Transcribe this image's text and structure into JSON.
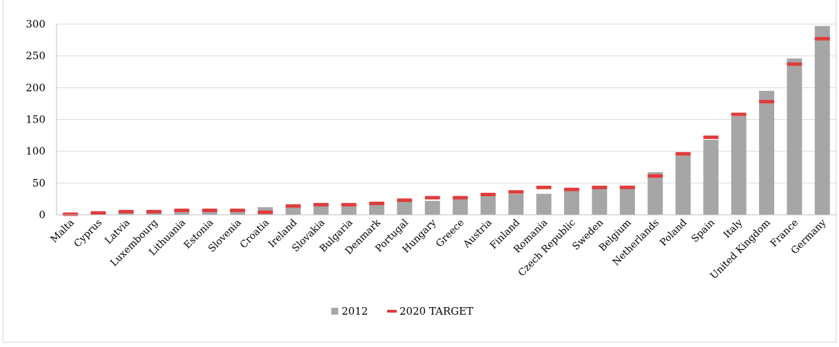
{
  "chart_data": {
    "type": "bar",
    "title": "",
    "xlabel": "",
    "ylabel": "",
    "ylim": [
      0,
      300
    ],
    "yticks": [
      "0",
      "50",
      "100",
      "150",
      "200",
      "250",
      "300"
    ],
    "grid": true,
    "legend_position": "bottom",
    "categories": [
      "Malta",
      "Cyprus",
      "Latvia",
      "Luxembourg",
      "Lithuania",
      "Estonia",
      "Slovenia",
      "Croatia",
      "Ireland",
      "Slovakia",
      "Bulgaria",
      "Denmark",
      "Portugal",
      "Hungary",
      "Greece",
      "Austria",
      "Finland",
      "Romania",
      "Czech Republic",
      "Sweden",
      "Belgium",
      "Netherlands",
      "Poland",
      "Spain",
      "Italy",
      "United Kingdom",
      "France",
      "Germany"
    ],
    "series": [
      {
        "name": "2012",
        "kind": "bar",
        "color": "#a6a6a6",
        "values": [
          1,
          3,
          5,
          4,
          6,
          6,
          7,
          12,
          14,
          16,
          16,
          18,
          22,
          22,
          26,
          30,
          33,
          33,
          40,
          45,
          46,
          67,
          95,
          118,
          155,
          195,
          246,
          297
        ]
      },
      {
        "name": "2020 TARGET",
        "kind": "marker",
        "color": "#e03c3c",
        "values": [
          1,
          3,
          5,
          5,
          7,
          7,
          7,
          4,
          14,
          16,
          16,
          18,
          23,
          27,
          27,
          32,
          36,
          43,
          40,
          43,
          43,
          61,
          96,
          122,
          158,
          178,
          237,
          277
        ]
      }
    ]
  }
}
